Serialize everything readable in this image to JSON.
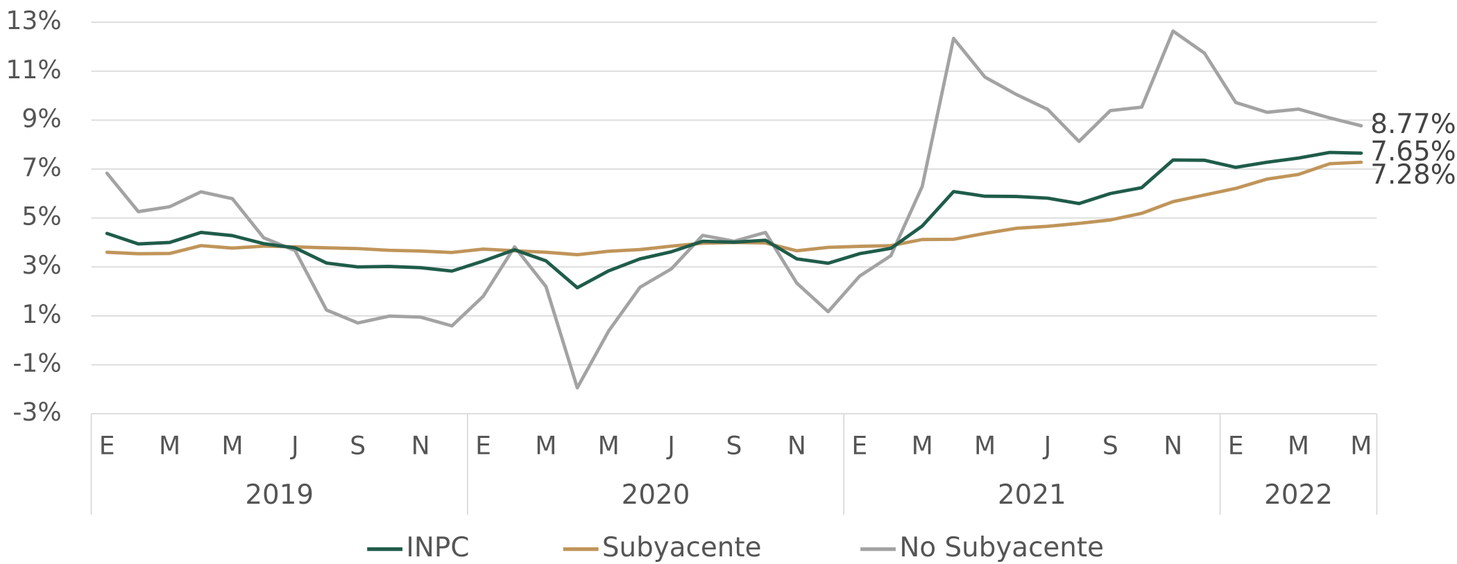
{
  "chart_data": {
    "type": "line",
    "categories": [
      "E",
      null,
      "M",
      null,
      "M",
      null,
      "J",
      null,
      "S",
      null,
      "N",
      null,
      "E",
      null,
      "M",
      null,
      "M",
      null,
      "J",
      null,
      "S",
      null,
      "N",
      null,
      "E",
      null,
      "M",
      null,
      "M",
      null,
      "J",
      null,
      "S",
      null,
      "N",
      null,
      "E",
      null,
      "M",
      null,
      "M"
    ],
    "years": [
      "2019",
      "2020",
      "2021",
      "2022"
    ],
    "series": [
      {
        "name": "INPC",
        "color": "#1f5c4a",
        "values": [
          4.37,
          3.94,
          4.0,
          4.41,
          4.28,
          3.95,
          3.78,
          3.16,
          3.0,
          3.02,
          2.97,
          2.83,
          3.24,
          3.7,
          3.25,
          2.15,
          2.84,
          3.33,
          3.62,
          4.05,
          4.01,
          4.09,
          3.33,
          3.15,
          3.54,
          3.76,
          4.67,
          6.08,
          5.89,
          5.88,
          5.81,
          5.59,
          6.0,
          6.24,
          7.37,
          7.36,
          7.07,
          7.28,
          7.45,
          7.68,
          7.65
        ],
        "value_labels": [
          null,
          null,
          null,
          null,
          null,
          null,
          null,
          null,
          null,
          null,
          null,
          null,
          null,
          null,
          null,
          null,
          null,
          null,
          null,
          null,
          null,
          null,
          null,
          null,
          null,
          null,
          null,
          null,
          null,
          null,
          null,
          null,
          null,
          null,
          null,
          null,
          null,
          null,
          null,
          null,
          "7.65%"
        ]
      },
      {
        "name": "Subyacente",
        "color": "#c0955a",
        "values": [
          3.6,
          3.54,
          3.55,
          3.87,
          3.77,
          3.85,
          3.82,
          3.78,
          3.75,
          3.68,
          3.65,
          3.59,
          3.73,
          3.66,
          3.6,
          3.5,
          3.64,
          3.71,
          3.85,
          3.97,
          4.0,
          3.98,
          3.66,
          3.8,
          3.84,
          3.87,
          4.12,
          4.13,
          4.37,
          4.58,
          4.66,
          4.78,
          4.92,
          5.19,
          5.67,
          5.94,
          6.21,
          6.59,
          6.78,
          7.22,
          7.28
        ],
        "value_labels": [
          null,
          null,
          null,
          null,
          null,
          null,
          null,
          null,
          null,
          null,
          null,
          null,
          null,
          null,
          null,
          null,
          null,
          null,
          null,
          null,
          null,
          null,
          null,
          null,
          null,
          null,
          null,
          null,
          null,
          null,
          null,
          null,
          null,
          null,
          null,
          null,
          null,
          null,
          null,
          null,
          "7.28%"
        ]
      },
      {
        "name": "No Subyacente",
        "color": "#a3a3a3",
        "values": [
          6.83,
          5.26,
          5.46,
          6.07,
          5.79,
          4.19,
          3.67,
          1.24,
          0.71,
          0.99,
          0.95,
          0.59,
          1.8,
          3.82,
          2.2,
          -1.94,
          0.38,
          2.17,
          2.92,
          4.29,
          4.05,
          4.41,
          2.34,
          1.17,
          2.62,
          3.46,
          6.29,
          12.34,
          10.76,
          10.05,
          9.44,
          8.13,
          9.39,
          9.53,
          12.64,
          11.74,
          9.72,
          9.32,
          9.45,
          9.09,
          8.77
        ],
        "value_labels": [
          null,
          null,
          null,
          null,
          null,
          null,
          null,
          null,
          null,
          null,
          null,
          null,
          null,
          null,
          null,
          null,
          null,
          null,
          null,
          null,
          null,
          null,
          null,
          null,
          null,
          null,
          null,
          null,
          null,
          null,
          null,
          null,
          null,
          null,
          null,
          null,
          null,
          null,
          null,
          null,
          "8.77%"
        ]
      }
    ],
    "ylim": [
      -3,
      13
    ],
    "yticks": [
      {
        "value": 13,
        "label": "13%"
      },
      {
        "value": 11,
        "label": "11%"
      },
      {
        "value": 9,
        "label": "9%"
      },
      {
        "value": 7,
        "label": "7%"
      },
      {
        "value": 5,
        "label": "5%"
      },
      {
        "value": 3,
        "label": "3%"
      },
      {
        "value": 1,
        "label": "1%"
      },
      {
        "value": -1,
        "label": "-1%"
      },
      {
        "value": -3,
        "label": "-3%"
      }
    ],
    "grid": true,
    "legend": "bottom"
  }
}
